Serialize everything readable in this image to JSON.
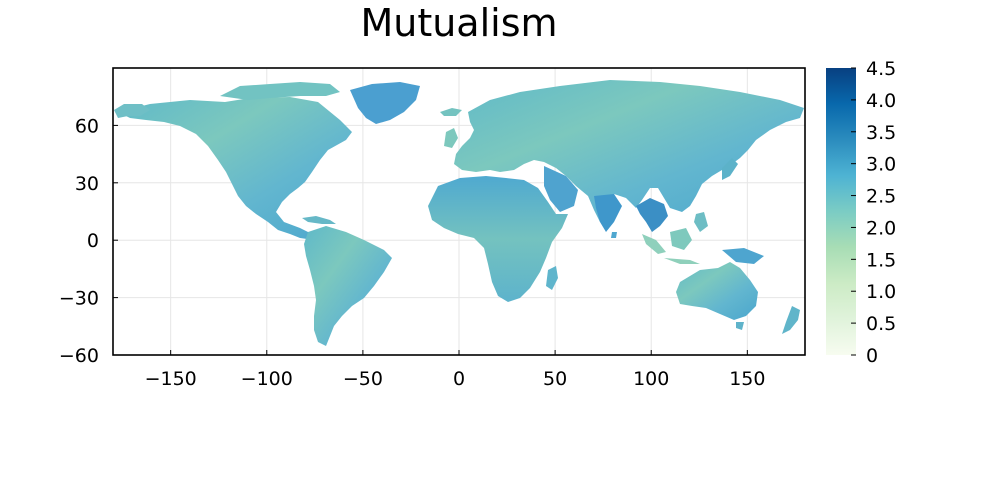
{
  "chart_data": {
    "type": "heatmap",
    "title": "Mutualism",
    "xlabel": "",
    "ylabel": "",
    "xlim": [
      -180,
      180
    ],
    "ylim": [
      -60,
      90
    ],
    "x_ticks": [
      -150,
      -100,
      -50,
      0,
      50,
      100,
      150
    ],
    "x_tick_labels": [
      "−150",
      "−100",
      "−50",
      "0",
      "50",
      "100",
      "150"
    ],
    "y_ticks": [
      -60,
      -30,
      0,
      30,
      60
    ],
    "y_tick_labels": [
      "−60",
      "−30",
      "0",
      "30",
      "60"
    ],
    "grid": true,
    "colorbar": {
      "range": [
        0,
        4.5
      ],
      "ticks": [
        0,
        0.5,
        1.0,
        1.5,
        2.0,
        2.5,
        3.0,
        3.5,
        4.0,
        4.5
      ],
      "tick_labels": [
        "0",
        "0.5",
        "1.0",
        "1.5",
        "2.0",
        "2.5",
        "3.0",
        "3.5",
        "4.0",
        "4.5"
      ],
      "colormap": [
        "#f7fcf0",
        "#e0f3db",
        "#ccebc5",
        "#a8ddb5",
        "#7bccc4",
        "#4eb3d3",
        "#2b8cbe",
        "#0868ac",
        "#084081"
      ]
    }
  }
}
